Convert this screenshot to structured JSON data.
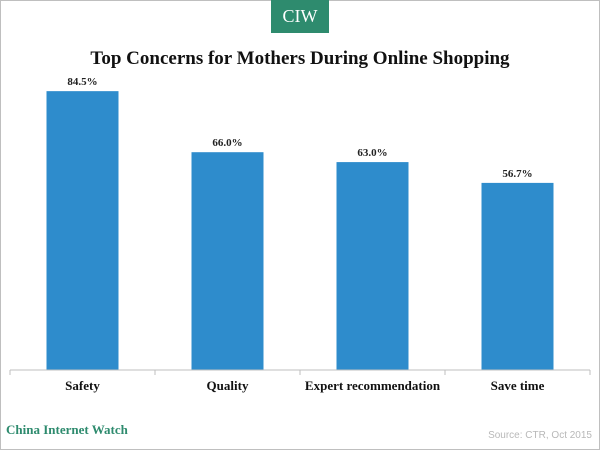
{
  "badge": "CIW",
  "footer": {
    "brand": "China Internet Watch",
    "source": "Source: CTR, Oct 2015"
  },
  "colors": {
    "bar": "#2e8ccc",
    "brand": "#2e8b6e"
  },
  "chart_data": {
    "type": "bar",
    "title": "Top Concerns for Mothers During Online Shopping",
    "categories": [
      "Safety",
      "Quality",
      "Expert recommendation",
      "Save time"
    ],
    "values": [
      84.5,
      66.0,
      63.0,
      56.7
    ],
    "data_labels": [
      "84.5%",
      "66.0%",
      "63.0%",
      "56.7%"
    ],
    "ylim": [
      0,
      100
    ],
    "grid": false,
    "legend": "none"
  }
}
